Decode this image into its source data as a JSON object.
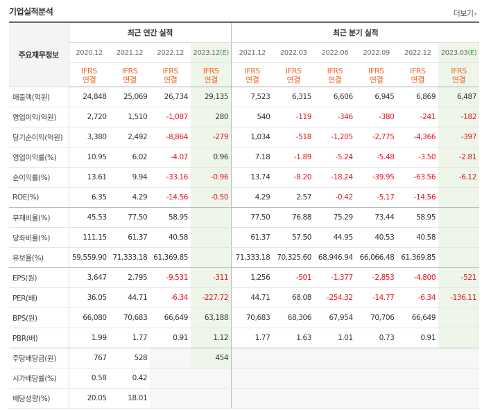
{
  "header": {
    "title": "기업실적분석",
    "more_label": "더보기"
  },
  "groups": {
    "annual": "최근 연간 실적",
    "quarterly": "최근 분기 실적"
  },
  "row_header_label": "주요재무정보",
  "periods": [
    {
      "label": "2020.12",
      "est": false
    },
    {
      "label": "2021.12",
      "est": false
    },
    {
      "label": "2022.12",
      "est": false
    },
    {
      "label": "2023.12",
      "est": true
    },
    {
      "label": "2021.12",
      "est": false
    },
    {
      "label": "2022.03",
      "est": false
    },
    {
      "label": "2022.06",
      "est": false
    },
    {
      "label": "2022.09",
      "est": false
    },
    {
      "label": "2022.12",
      "est": false
    },
    {
      "label": "2023.03",
      "est": true
    }
  ],
  "est_mark": "(E)",
  "basis": {
    "line1": "IFRS",
    "line2": "연결"
  },
  "rows": [
    {
      "label": "매출액(억원)",
      "values": [
        "24,848",
        "25,069",
        "26,734",
        "29,135",
        "7,523",
        "6,315",
        "6,606",
        "6,945",
        "6,869",
        "6,487"
      ]
    },
    {
      "label": "영업이익(억원)",
      "values": [
        "2,720",
        "1,510",
        "-1,087",
        "280",
        "540",
        "-119",
        "-346",
        "-380",
        "-241",
        "-182"
      ]
    },
    {
      "label": "당기순이익(억원)",
      "values": [
        "3,380",
        "2,492",
        "-8,864",
        "-279",
        "1,034",
        "-518",
        "-1,205",
        "-2,775",
        "-4,366",
        "-397"
      ]
    },
    {
      "label": "영업이익률(%)",
      "values": [
        "10.95",
        "6.02",
        "-4.07",
        "0.96",
        "7.18",
        "-1.89",
        "-5.24",
        "-5.48",
        "-3.50",
        "-2.81"
      ]
    },
    {
      "label": "순이익률(%)",
      "values": [
        "13.61",
        "9.94",
        "-33.16",
        "-0.96",
        "13.74",
        "-8.20",
        "-18.24",
        "-39.95",
        "-63.56",
        "-6.12"
      ]
    },
    {
      "label": "ROE(%)",
      "values": [
        "6.35",
        "4.29",
        "-14.56",
        "-0.50",
        "4.29",
        "2.57",
        "-0.42",
        "-5.17",
        "-14.56",
        ""
      ]
    },
    {
      "label": "부채비율(%)",
      "values": [
        "45.53",
        "77.50",
        "58.95",
        "",
        "77.50",
        "76.88",
        "75.29",
        "73.44",
        "58.95",
        ""
      ]
    },
    {
      "label": "당좌비율(%)",
      "values": [
        "111.15",
        "61.37",
        "40.58",
        "",
        "61.37",
        "57.50",
        "44.95",
        "40.53",
        "40.58",
        ""
      ]
    },
    {
      "label": "유보율(%)",
      "values": [
        "59,559.90",
        "71,333.18",
        "61,369.85",
        "",
        "71,333.18",
        "70,325.60",
        "68,946.94",
        "66,066.48",
        "61,369.85",
        ""
      ]
    },
    {
      "label": "EPS(원)",
      "values": [
        "3,647",
        "2,795",
        "-9,531",
        "-311",
        "1,256",
        "-501",
        "-1,377",
        "-2,853",
        "-4,800",
        "-521"
      ]
    },
    {
      "label": "PER(배)",
      "values": [
        "36.05",
        "44.71",
        "-6.34",
        "-227.72",
        "44.71",
        "68.08",
        "-254.32",
        "-14.77",
        "-6.34",
        "-136.11"
      ]
    },
    {
      "label": "BPS(원)",
      "values": [
        "66,080",
        "70,683",
        "66,649",
        "63,188",
        "70,683",
        "68,306",
        "67,954",
        "70,706",
        "66,649",
        ""
      ]
    },
    {
      "label": "PBR(배)",
      "values": [
        "1.99",
        "1.77",
        "0.91",
        "1.12",
        "1.77",
        "1.63",
        "1.01",
        "0.73",
        "0.91",
        ""
      ]
    },
    {
      "label": "주당배당금(원)",
      "values": [
        "767",
        "528",
        "",
        "454",
        "",
        "",
        "",
        "",
        "",
        ""
      ]
    },
    {
      "label": "시가배당률(%)",
      "values": [
        "0.58",
        "0.42",
        "",
        "",
        "",
        "",
        "",
        "",
        "",
        ""
      ]
    },
    {
      "label": "배당성향(%)",
      "values": [
        "20.05",
        "18.01",
        "",
        "",
        "",
        "",
        "",
        "",
        "",
        ""
      ]
    }
  ]
}
